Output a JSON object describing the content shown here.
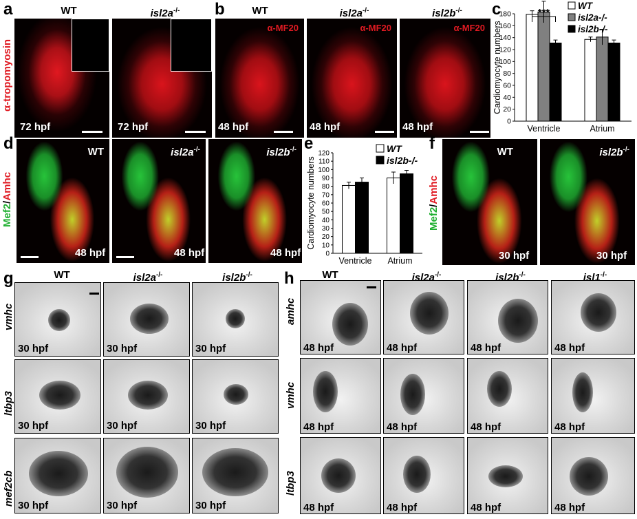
{
  "panels": {
    "a": {
      "label": "a",
      "titles": [
        "WT",
        "isl2a"
      ],
      "title_sup": [
        "",
        "-/-"
      ],
      "stain": "α-tropomyosin",
      "time": [
        "72 hpf",
        "72 hpf"
      ]
    },
    "b": {
      "label": "b",
      "titles": [
        "WT",
        "isl2a",
        "isl2b"
      ],
      "title_sup": [
        "",
        "-/-",
        "-/-"
      ],
      "stain": [
        "α-MF20",
        "α-MF20",
        "α-MF20"
      ],
      "time": [
        "48 hpf",
        "48 hpf",
        "48 hpf"
      ]
    },
    "c": {
      "label": "c"
    },
    "d": {
      "label": "d",
      "titles": [
        "WT",
        "isl2a",
        "isl2b"
      ],
      "title_sup": [
        "",
        "-/-",
        "-/-"
      ],
      "stain_green": "Mef2",
      "stain_sep": "/",
      "stain_red": "Amhc",
      "time": [
        "48 hpf",
        "48 hpf",
        "48 hpf"
      ]
    },
    "e": {
      "label": "e"
    },
    "f": {
      "label": "f",
      "titles": [
        "WT",
        "isl2b"
      ],
      "title_sup": [
        "",
        "-/-"
      ],
      "stain_green": "Mef2",
      "stain_sep": "/",
      "stain_red": "Amhc",
      "time": [
        "30 hpf",
        "30 hpf"
      ]
    },
    "g": {
      "label": "g",
      "titles": [
        "WT",
        "isl2a",
        "isl2b"
      ],
      "title_sup": [
        "",
        "-/-",
        "-/-"
      ],
      "rows": [
        "vmhc",
        "ltbp3",
        "mef2cb"
      ],
      "time": "30 hpf"
    },
    "h": {
      "label": "h",
      "titles": [
        "WT",
        "isl2a",
        "isl2b",
        "isl1"
      ],
      "title_sup": [
        "",
        "-/-",
        "-/-",
        "-/-"
      ],
      "rows": [
        "amhc",
        "vmhc",
        "ltbp3"
      ],
      "time": "48 hpf"
    }
  },
  "chart_data": [
    {
      "type": "bar",
      "panel": "c",
      "categories": [
        "Ventricle",
        "Atrium"
      ],
      "ylabel": "Cardiomyocyte numbers",
      "ylim": [
        0,
        180
      ],
      "yticks": [
        0,
        20,
        40,
        60,
        80,
        100,
        120,
        140,
        160,
        180
      ],
      "series": [
        {
          "name": "WT",
          "color": "#ffffff",
          "values": [
            179,
            137
          ],
          "errors": [
            6,
            4
          ]
        },
        {
          "name": "isl2a-/-",
          "color": "#808080",
          "values": [
            183,
            141
          ],
          "errors": [
            18,
            13
          ]
        },
        {
          "name": "isl2b-/-",
          "color": "#000000",
          "values": [
            131,
            131
          ],
          "errors": [
            5,
            5
          ]
        }
      ],
      "annotation": "***",
      "legend_position": "top-right"
    },
    {
      "type": "bar",
      "panel": "e",
      "categories": [
        "Ventricle",
        "Atrium"
      ],
      "ylabel": "Cardiomyocyte numbers",
      "ylim": [
        0,
        120
      ],
      "yticks": [
        0,
        10,
        20,
        30,
        40,
        50,
        60,
        70,
        80,
        90,
        100,
        110,
        120
      ],
      "series": [
        {
          "name": "WT",
          "color": "#ffffff",
          "values": [
            81,
            90
          ],
          "errors": [
            4,
            7
          ]
        },
        {
          "name": "isl2b-/-",
          "color": "#000000",
          "values": [
            85,
            95
          ],
          "errors": [
            5,
            4
          ]
        }
      ],
      "legend_position": "top-right"
    }
  ]
}
